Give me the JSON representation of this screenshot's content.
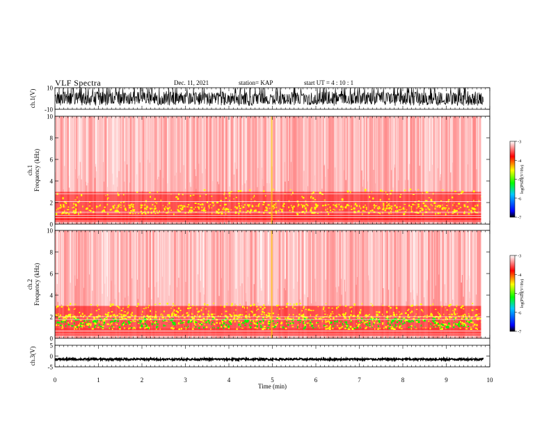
{
  "header": {
    "title": "VLF Spectra",
    "date": "Dec. 11, 2021",
    "station": "station= KAP",
    "start_ut": "start  UT =   4 : 10 : 1"
  },
  "colors": {
    "spectrum_high": "#ff0000",
    "spectrum_mid": "#ffff00",
    "spectrum_low": "#00ff00",
    "waveform": "#000000"
  },
  "chart_data": [
    {
      "type": "line",
      "id": "ch1-waveform",
      "ylabel": "ch.1(V)",
      "ylim": [
        -10,
        10
      ],
      "yticks": [
        "10",
        "-10"
      ],
      "xlim": [
        0,
        10
      ],
      "amplitude_range": [
        -4,
        6
      ]
    },
    {
      "type": "heatmap",
      "id": "ch1-spectrogram",
      "ylabel": "ch.1\nFrequency  (kHz)",
      "ylim": [
        0,
        10
      ],
      "yticks": [
        "0",
        "2",
        "4",
        "6",
        "8",
        "10"
      ],
      "xlim": [
        0,
        9.8
      ],
      "colorbar": {
        "label": "log(PSD)(V²/Hz)",
        "range": [
          -7,
          -3
        ],
        "ticks": [
          "-3",
          "-4",
          "-5",
          "-6",
          "-7"
        ]
      },
      "dominant_level": -4,
      "strong_band_khz": [
        0.9,
        3.0
      ]
    },
    {
      "type": "heatmap",
      "id": "ch2-spectrogram",
      "ylabel": "ch.2\nFrequency  (kHz)",
      "ylim": [
        0,
        10
      ],
      "yticks": [
        "0",
        "2",
        "4",
        "6",
        "8",
        "10"
      ],
      "xlim": [
        0,
        9.8
      ],
      "colorbar": {
        "label": "log(PSD)(V²/Hz)",
        "range": [
          -7,
          -3
        ],
        "ticks": [
          "-3",
          "-4",
          "-5",
          "-6",
          "-7"
        ]
      },
      "dominant_level": -4,
      "strong_band_khz": [
        0.8,
        3.0
      ]
    },
    {
      "type": "line",
      "id": "ch3-waveform",
      "ylabel": "ch.3(V)",
      "ylim": [
        -5,
        5
      ],
      "yticks": [
        "5",
        "0",
        "-5"
      ],
      "xlim": [
        0,
        10
      ],
      "amplitude_range": [
        -2,
        -1
      ]
    }
  ],
  "xaxis": {
    "label": "Time  (min)",
    "ticks": [
      "0",
      "1",
      "2",
      "3",
      "4",
      "5",
      "6",
      "7",
      "8",
      "9",
      "10"
    ]
  }
}
